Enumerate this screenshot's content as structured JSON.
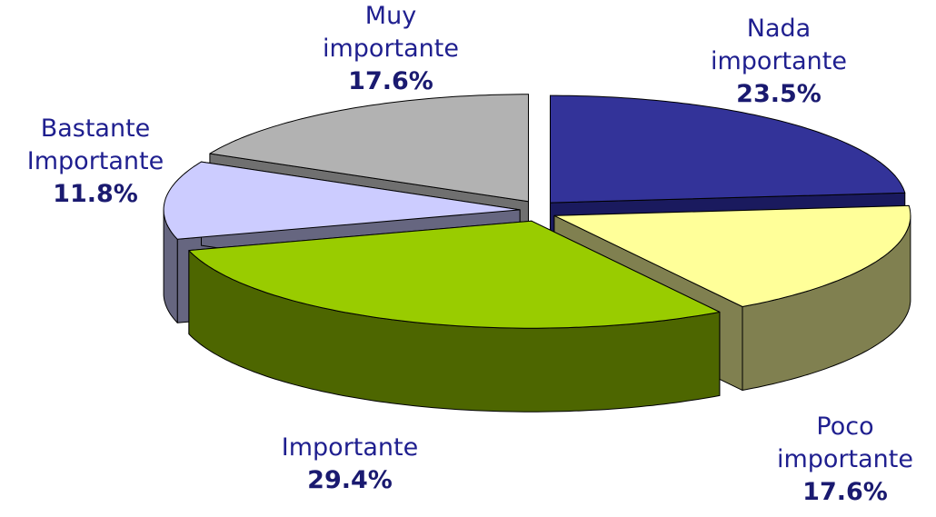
{
  "chart_data": {
    "type": "pie",
    "categories": [
      "Nada importante",
      "Poco importante",
      "Importante",
      "Bastante Importante",
      "Muy importante"
    ],
    "values": [
      23.5,
      17.6,
      29.4,
      11.8,
      17.6
    ],
    "value_labels": [
      "23.5%",
      "17.6%",
      "29.4%",
      "11.8%",
      "17.6%"
    ],
    "colors": [
      "#333399",
      "#ffff99",
      "#99cc00",
      "#ccccff",
      "#b2b2b2"
    ],
    "side_colors": [
      "#1a1a5e",
      "#808050",
      "#4d6600",
      "#666680",
      "#707070"
    ],
    "three_d": true,
    "exploded": true
  }
}
